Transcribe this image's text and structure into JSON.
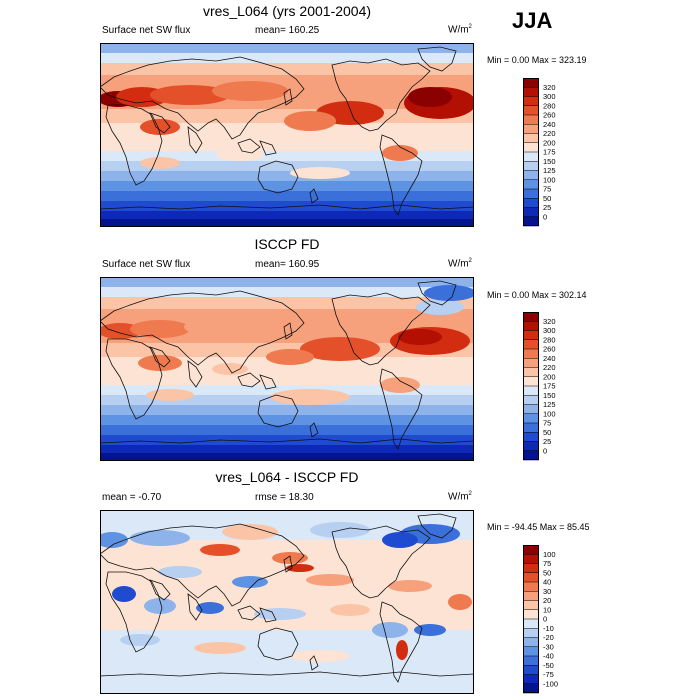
{
  "season": "JJA",
  "panels": [
    {
      "title": "vres_L064 (yrs 2001-2004)",
      "left": "Surface net SW flux",
      "center": "mean= 160.25",
      "units_base": "W/m",
      "units_exp": "2",
      "minmax": "Min =   0.00 Max = 323.19",
      "levels": [
        "320",
        "300",
        "280",
        "260",
        "240",
        "220",
        "200",
        "175",
        "150",
        "125",
        "100",
        "75",
        "50",
        "25",
        "0"
      ],
      "colors": [
        "#8b0000",
        "#b30f02",
        "#d22d10",
        "#e4502a",
        "#ef7a4f",
        "#f6a07c",
        "#fbc4a6",
        "#fde3d3",
        "#dbe8f7",
        "#b7cff0",
        "#8db3ea",
        "#5e92e2",
        "#3b6fda",
        "#1f4bd0",
        "#0e28b8",
        "#04148f"
      ]
    },
    {
      "title": "ISCCP FD",
      "left": "Surface net SW flux",
      "center": "mean= 160.95",
      "units_base": "W/m",
      "units_exp": "2",
      "minmax": "Min =   0.00 Max = 302.14",
      "levels": [
        "320",
        "300",
        "280",
        "260",
        "240",
        "220",
        "200",
        "175",
        "150",
        "125",
        "100",
        "75",
        "50",
        "25",
        "0"
      ],
      "colors": [
        "#8b0000",
        "#b30f02",
        "#d22d10",
        "#e4502a",
        "#ef7a4f",
        "#f6a07c",
        "#fbc4a6",
        "#fde3d3",
        "#dbe8f7",
        "#b7cff0",
        "#8db3ea",
        "#5e92e2",
        "#3b6fda",
        "#1f4bd0",
        "#0e28b8",
        "#04148f"
      ]
    },
    {
      "title": "vres_L064 - ISCCP FD",
      "left": "mean =  -0.70",
      "center": "rmse =  18.30",
      "units_base": "W/m",
      "units_exp": "2",
      "minmax": "Min = -94.45 Max =  85.45",
      "levels": [
        "100",
        "75",
        "50",
        "40",
        "30",
        "20",
        "10",
        "0",
        "-10",
        "-20",
        "-30",
        "-40",
        "-50",
        "-75",
        "-100"
      ],
      "colors": [
        "#8b0000",
        "#b30f02",
        "#d22d10",
        "#e4502a",
        "#ef7a4f",
        "#f6a07c",
        "#fbc4a6",
        "#fde3d3",
        "#dbe8f7",
        "#b7cff0",
        "#8db3ea",
        "#5e92e2",
        "#3b6fda",
        "#1f4bd0",
        "#0e28b8",
        "#04148f"
      ]
    }
  ]
}
